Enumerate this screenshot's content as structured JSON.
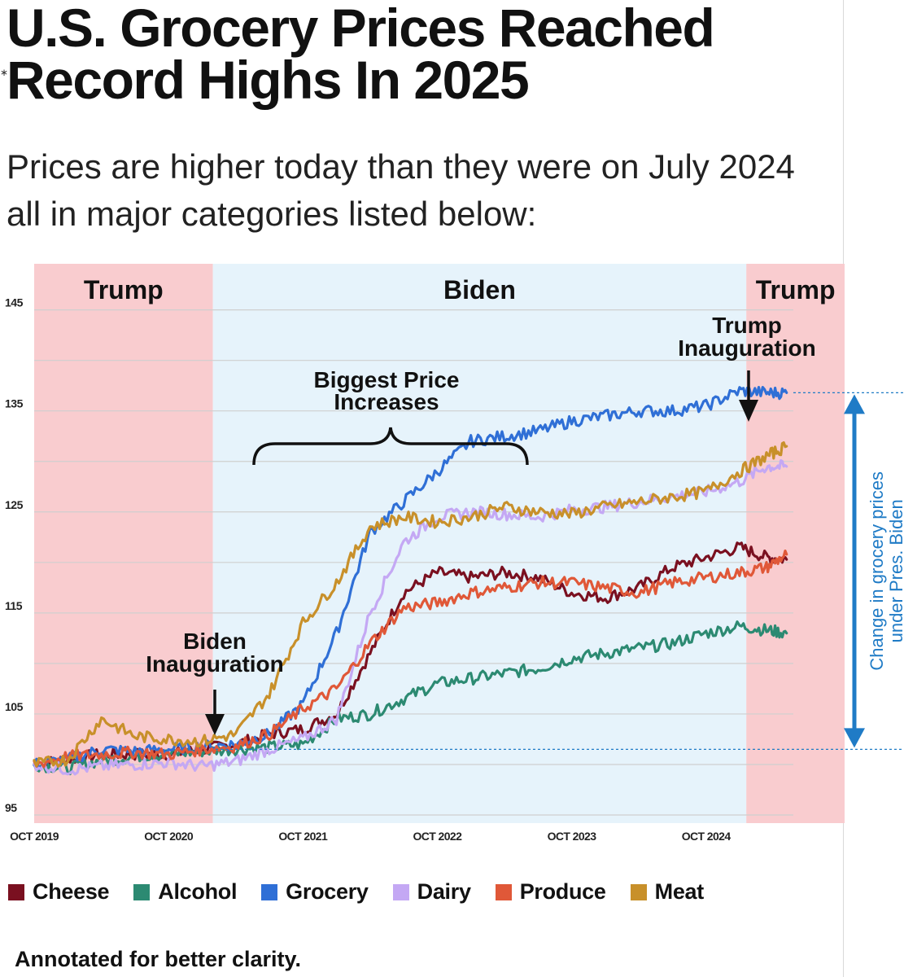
{
  "title": "U.S. Grocery Prices Reached Record Highs In 2025",
  "subtitle": "Prices are higher today than they were on July 2024 all in major categories listed below:",
  "footnote": "Annotated for better clarity.",
  "stray_mark": "∗",
  "colors": {
    "trump_region": "#f9cccf",
    "biden_region": "#e6f3fb",
    "arrow_blue": "#1f7bc6"
  },
  "chart_data": {
    "type": "line",
    "ylim": [
      95,
      149
    ],
    "yticks": [
      95,
      105,
      115,
      125,
      135,
      145
    ],
    "x_ticks": [
      "OCT 2019",
      "OCT 2020",
      "OCT 2021",
      "OCT 2022",
      "OCT 2023",
      "OCT 2024"
    ],
    "x_tick_values": [
      2019.75,
      2020.75,
      2021.75,
      2022.75,
      2023.75,
      2024.75
    ],
    "x_range": [
      2019.75,
      2025.4
    ],
    "grid": true,
    "legend_position": "bottom",
    "regions": [
      {
        "label": "Trump",
        "from": 2019.75,
        "to": 2021.08,
        "color": "#f9cccf"
      },
      {
        "label": "Biden",
        "from": 2021.08,
        "to": 2025.05,
        "color": "#e6f3fb"
      },
      {
        "label": "Trump",
        "from": 2025.05,
        "to": 2025.4,
        "color": "#f9cccf"
      }
    ],
    "annotations": {
      "biggest_increases": [
        "Biggest Price",
        "Increases"
      ],
      "biden_inauguration": [
        "Biden",
        "Inauguration"
      ],
      "trump_inauguration": [
        "Trump",
        "Inauguration"
      ],
      "change_label": [
        "Change in grocery prices",
        "under Pres. Biden"
      ],
      "change_from": 101.5,
      "change_to": 136.8
    },
    "series": [
      {
        "name": "Cheese",
        "color": "#7a1020",
        "x": [
          2019.75,
          2020.0,
          2020.25,
          2020.5,
          2020.75,
          2021.0,
          2021.25,
          2021.5,
          2021.75,
          2022.0,
          2022.25,
          2022.5,
          2022.75,
          2023.0,
          2023.25,
          2023.5,
          2023.75,
          2024.0,
          2024.25,
          2024.5,
          2024.75,
          2025.0,
          2025.2,
          2025.35
        ],
        "values": [
          100,
          100.5,
          101,
          101,
          101,
          101.5,
          102,
          103,
          103.5,
          105,
          111,
          117,
          119,
          118.5,
          119,
          118.5,
          117,
          116.5,
          117.5,
          119.5,
          120.5,
          121.5,
          120.5,
          120.3
        ]
      },
      {
        "name": "Alcohol",
        "color": "#2c8a72",
        "x": [
          2019.75,
          2020.0,
          2020.25,
          2020.5,
          2020.75,
          2021.0,
          2021.25,
          2021.5,
          2021.75,
          2022.0,
          2022.25,
          2022.5,
          2022.75,
          2023.0,
          2023.25,
          2023.5,
          2023.75,
          2024.0,
          2024.25,
          2024.5,
          2024.75,
          2025.0,
          2025.2,
          2025.35
        ],
        "values": [
          100,
          99.6,
          100.4,
          100.8,
          101,
          101.3,
          101.5,
          101.7,
          102,
          104.5,
          105,
          106.5,
          108,
          108.5,
          109,
          109.5,
          110.5,
          111,
          111.5,
          112,
          113,
          113.7,
          113.3,
          113
        ]
      },
      {
        "name": "Grocery",
        "color": "#2f6fd6",
        "x": [
          2019.75,
          2020.0,
          2020.25,
          2020.5,
          2020.75,
          2021.0,
          2021.25,
          2021.5,
          2021.75,
          2022.0,
          2022.25,
          2022.5,
          2022.75,
          2023.0,
          2023.25,
          2023.5,
          2023.75,
          2024.0,
          2024.25,
          2024.5,
          2024.75,
          2025.0,
          2025.2,
          2025.35
        ],
        "values": [
          100,
          100.5,
          101.5,
          101.3,
          101.5,
          101.8,
          102,
          103,
          106,
          113,
          123,
          126,
          129,
          132,
          132.5,
          133,
          134,
          134.5,
          135,
          135,
          135.5,
          137,
          136.8,
          136.8
        ]
      },
      {
        "name": "Dairy",
        "color": "#c4a8f4",
        "x": [
          2019.75,
          2020.0,
          2020.25,
          2020.5,
          2020.75,
          2021.0,
          2021.25,
          2021.5,
          2021.75,
          2022.0,
          2022.25,
          2022.5,
          2022.75,
          2023.0,
          2023.25,
          2023.5,
          2023.75,
          2024.0,
          2024.25,
          2024.5,
          2024.75,
          2025.0,
          2025.2,
          2025.35
        ],
        "values": [
          100,
          99.5,
          99.8,
          100,
          100.2,
          99.8,
          100.3,
          101.5,
          102.5,
          104.5,
          115,
          122,
          124.5,
          125,
          124.8,
          124.5,
          125.2,
          125.5,
          126,
          126.5,
          127,
          128,
          129.5,
          129.5
        ]
      },
      {
        "name": "Produce",
        "color": "#e05838",
        "x": [
          2019.75,
          2020.0,
          2020.25,
          2020.5,
          2020.75,
          2021.0,
          2021.25,
          2021.5,
          2021.75,
          2022.0,
          2022.25,
          2022.5,
          2022.75,
          2023.0,
          2023.25,
          2023.5,
          2023.75,
          2024.0,
          2024.25,
          2024.5,
          2024.75,
          2025.0,
          2025.2,
          2025.35
        ],
        "values": [
          100,
          100.8,
          101,
          101.2,
          101,
          101.5,
          101.8,
          103,
          105.5,
          107.5,
          112,
          115.5,
          116,
          117,
          117.5,
          118,
          118,
          117.5,
          117,
          118,
          118.5,
          119,
          119.5,
          120.8
        ]
      },
      {
        "name": "Meat",
        "color": "#c8902a",
        "x": [
          2019.75,
          2020.0,
          2020.25,
          2020.5,
          2020.75,
          2021.0,
          2021.25,
          2021.5,
          2021.75,
          2022.0,
          2022.25,
          2022.5,
          2022.75,
          2023.0,
          2023.25,
          2023.5,
          2023.75,
          2024.0,
          2024.25,
          2024.5,
          2024.75,
          2025.0,
          2025.2,
          2025.35
        ],
        "values": [
          100,
          100.5,
          104.5,
          102.8,
          102.5,
          102.3,
          103,
          107,
          114,
          118,
          123.5,
          124.5,
          124,
          124.5,
          125.5,
          125,
          124.8,
          125.5,
          126,
          126.5,
          127,
          129,
          130.5,
          131.5
        ]
      }
    ]
  }
}
